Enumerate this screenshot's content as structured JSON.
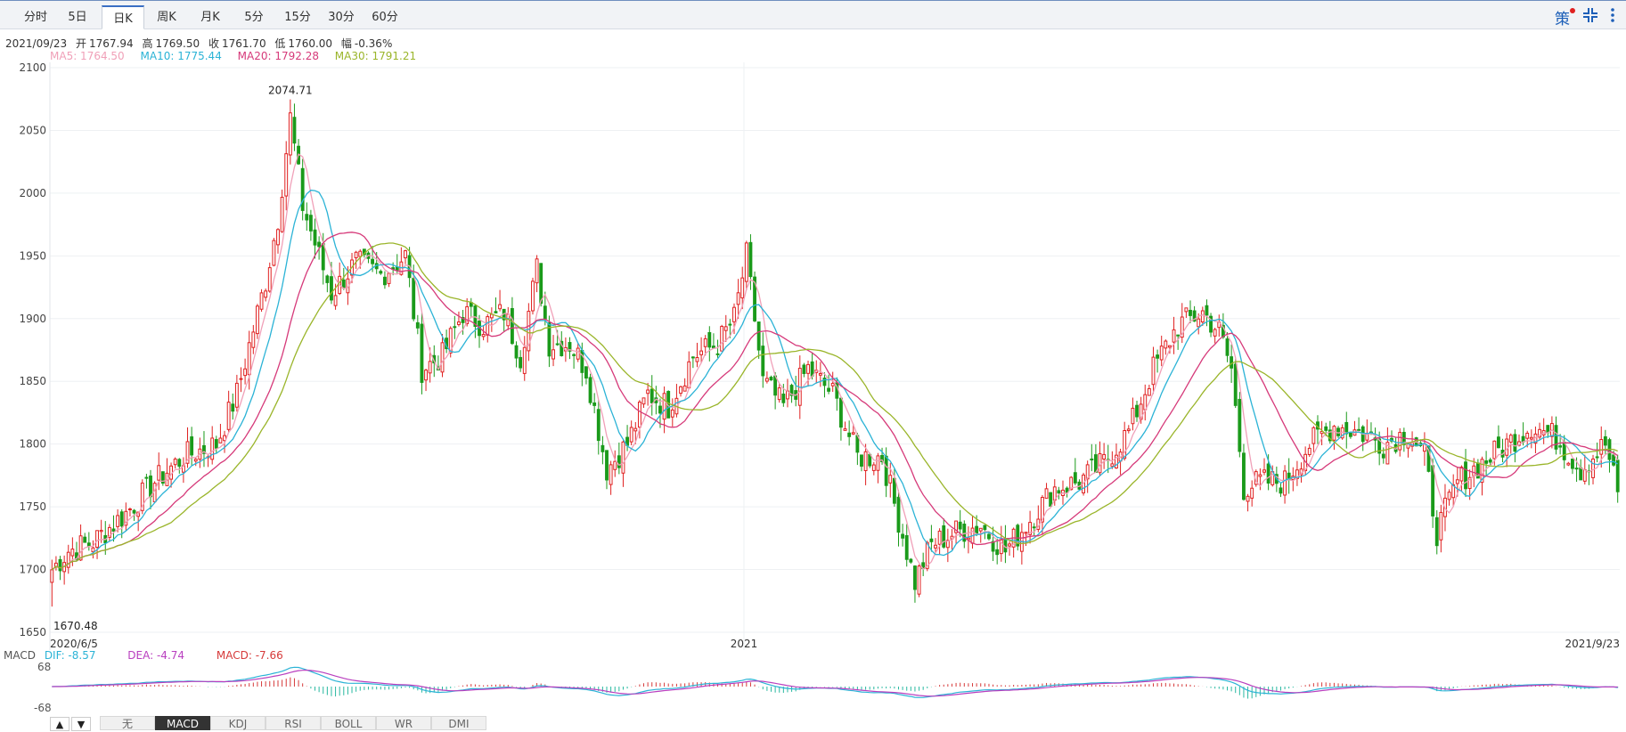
{
  "tabs": [
    "分时",
    "5日",
    "日K",
    "周K",
    "月K",
    "5分",
    "15分",
    "30分",
    "60分"
  ],
  "active_tab": "日K",
  "toolbar": {
    "strategy_label": "策",
    "fullscreen_icon": "expand-icon",
    "more_icon": "more-vertical-icon"
  },
  "info": {
    "date": "2021/09/23",
    "open_label": "开",
    "open": "1767.94",
    "high_label": "高",
    "high": "1769.50",
    "close_label": "收",
    "close": "1761.70",
    "low_label": "低",
    "low": "1760.00",
    "range_label": "幅",
    "range": "-0.36%"
  },
  "ma": [
    {
      "label": "MA5: 1764.50",
      "color": "#f0a0b8"
    },
    {
      "label": "MA10: 1775.44",
      "color": "#2bb3d6"
    },
    {
      "label": "MA20: 1792.28",
      "color": "#d63a7a"
    },
    {
      "label": "MA30: 1791.21",
      "color": "#9ab52a"
    }
  ],
  "macd": {
    "label": "MACD",
    "dif": "DIF: -8.57",
    "dea": "DEA: -4.74",
    "value": "MACD: -7.66",
    "dif_color": "#2bb3d6",
    "dea_color": "#b93fbf",
    "macd_color": "#d63a3a",
    "ymax_label": "68",
    "ymin_label": "-68"
  },
  "bottom_tabs": [
    "无",
    "MACD",
    "KDJ",
    "RSI",
    "BOLL",
    "WR",
    "DMI"
  ],
  "bottom_active": "MACD",
  "bottom_arrows": [
    "▲",
    "▼"
  ],
  "chart_data": {
    "type": "candlestick",
    "y_ticks": [
      "2100",
      "2050",
      "2000",
      "1950",
      "1900",
      "1850",
      "1800",
      "1750",
      "1700",
      "1650"
    ],
    "ylim": [
      1650,
      2100
    ],
    "x_labels": [
      "2020/6/5",
      "2021",
      "2021/9/23"
    ],
    "max_label": "2074.71",
    "min_label": "1670.48",
    "up_color": "#e02020",
    "down_color": "#1a9a1a",
    "anchors": [
      {
        "i": 0,
        "v": 1700
      },
      {
        "i": 4,
        "v": 1715
      },
      {
        "i": 10,
        "v": 1722
      },
      {
        "i": 18,
        "v": 1745
      },
      {
        "i": 25,
        "v": 1770
      },
      {
        "i": 32,
        "v": 1790
      },
      {
        "i": 40,
        "v": 1800
      },
      {
        "i": 45,
        "v": 1840
      },
      {
        "i": 52,
        "v": 1930
      },
      {
        "i": 55,
        "v": 1980
      },
      {
        "i": 58,
        "v": 2060
      },
      {
        "i": 61,
        "v": 1990
      },
      {
        "i": 64,
        "v": 1960
      },
      {
        "i": 68,
        "v": 1920
      },
      {
        "i": 74,
        "v": 1945
      },
      {
        "i": 80,
        "v": 1935
      },
      {
        "i": 86,
        "v": 1950
      },
      {
        "i": 90,
        "v": 1860
      },
      {
        "i": 95,
        "v": 1870
      },
      {
        "i": 100,
        "v": 1905
      },
      {
        "i": 105,
        "v": 1895
      },
      {
        "i": 110,
        "v": 1905
      },
      {
        "i": 114,
        "v": 1870
      },
      {
        "i": 118,
        "v": 1940
      },
      {
        "i": 121,
        "v": 1880
      },
      {
        "i": 126,
        "v": 1880
      },
      {
        "i": 130,
        "v": 1860
      },
      {
        "i": 135,
        "v": 1780
      },
      {
        "i": 140,
        "v": 1800
      },
      {
        "i": 145,
        "v": 1840
      },
      {
        "i": 150,
        "v": 1830
      },
      {
        "i": 156,
        "v": 1870
      },
      {
        "i": 162,
        "v": 1880
      },
      {
        "i": 166,
        "v": 1900
      },
      {
        "i": 169,
        "v": 1950
      },
      {
        "i": 173,
        "v": 1850
      },
      {
        "i": 178,
        "v": 1830
      },
      {
        "i": 184,
        "v": 1860
      },
      {
        "i": 190,
        "v": 1840
      },
      {
        "i": 196,
        "v": 1790
      },
      {
        "i": 202,
        "v": 1790
      },
      {
        "i": 206,
        "v": 1740
      },
      {
        "i": 210,
        "v": 1690
      },
      {
        "i": 214,
        "v": 1720
      },
      {
        "i": 220,
        "v": 1730
      },
      {
        "i": 226,
        "v": 1735
      },
      {
        "i": 232,
        "v": 1715
      },
      {
        "i": 238,
        "v": 1740
      },
      {
        "i": 244,
        "v": 1765
      },
      {
        "i": 250,
        "v": 1770
      },
      {
        "i": 256,
        "v": 1785
      },
      {
        "i": 262,
        "v": 1810
      },
      {
        "i": 268,
        "v": 1860
      },
      {
        "i": 274,
        "v": 1895
      },
      {
        "i": 280,
        "v": 1905
      },
      {
        "i": 284,
        "v": 1890
      },
      {
        "i": 287,
        "v": 1860
      },
      {
        "i": 290,
        "v": 1765
      },
      {
        "i": 294,
        "v": 1770
      },
      {
        "i": 300,
        "v": 1770
      },
      {
        "i": 306,
        "v": 1800
      },
      {
        "i": 312,
        "v": 1815
      },
      {
        "i": 318,
        "v": 1810
      },
      {
        "i": 324,
        "v": 1800
      },
      {
        "i": 330,
        "v": 1810
      },
      {
        "i": 334,
        "v": 1790
      },
      {
        "i": 337,
        "v": 1730
      },
      {
        "i": 342,
        "v": 1770
      },
      {
        "i": 348,
        "v": 1785
      },
      {
        "i": 354,
        "v": 1800
      },
      {
        "i": 360,
        "v": 1815
      },
      {
        "i": 366,
        "v": 1805
      },
      {
        "i": 372,
        "v": 1780
      },
      {
        "i": 378,
        "v": 1800
      },
      {
        "i": 381,
        "v": 1762
      }
    ]
  }
}
